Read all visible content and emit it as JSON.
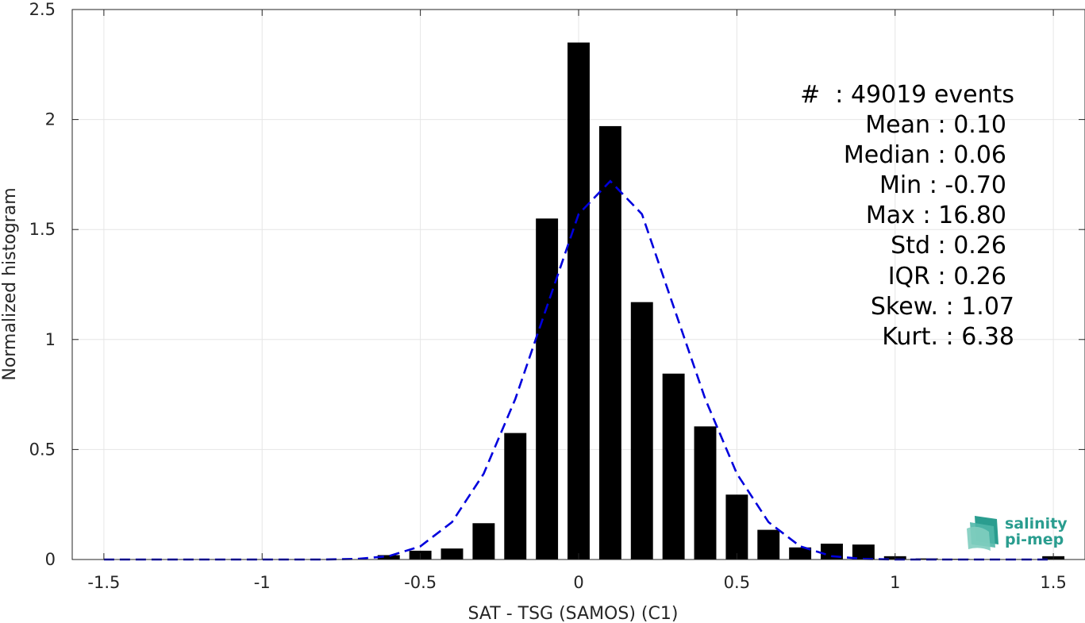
{
  "chart_data": {
    "type": "bar",
    "xlabel": "SAT - TSG (SAMOS) (C1)",
    "ylabel": "Normalized histogram",
    "xlim": [
      -1.6,
      1.6
    ],
    "ylim": [
      0,
      2.5
    ],
    "xticks": [
      -1.5,
      -1,
      -0.5,
      0,
      0.5,
      1,
      1.5
    ],
    "xtick_labels": [
      "-1.5",
      "-1",
      "-0.5",
      "0",
      "0.5",
      "1",
      "1.5"
    ],
    "yticks": [
      0,
      0.5,
      1,
      1.5,
      2,
      2.5
    ],
    "ytick_labels": [
      "0",
      "0.5",
      "1",
      "1.5",
      "2",
      "2.5"
    ],
    "grid": true,
    "bar_color": "#000000",
    "bar_width": 0.07,
    "bars": [
      {
        "x": -0.6,
        "y": 0.02
      },
      {
        "x": -0.5,
        "y": 0.04
      },
      {
        "x": -0.4,
        "y": 0.05
      },
      {
        "x": -0.3,
        "y": 0.165
      },
      {
        "x": -0.2,
        "y": 0.575
      },
      {
        "x": -0.1,
        "y": 1.55
      },
      {
        "x": 0.0,
        "y": 2.35
      },
      {
        "x": 0.1,
        "y": 1.97
      },
      {
        "x": 0.2,
        "y": 1.17
      },
      {
        "x": 0.3,
        "y": 0.845
      },
      {
        "x": 0.4,
        "y": 0.605
      },
      {
        "x": 0.5,
        "y": 0.295
      },
      {
        "x": 0.6,
        "y": 0.135
      },
      {
        "x": 0.7,
        "y": 0.055
      },
      {
        "x": 0.8,
        "y": 0.072
      },
      {
        "x": 0.9,
        "y": 0.068
      },
      {
        "x": 1.0,
        "y": 0.015
      },
      {
        "x": 1.1,
        "y": 0.005
      },
      {
        "x": 1.2,
        "y": 0.003
      },
      {
        "x": 1.3,
        "y": 0.002
      },
      {
        "x": 1.4,
        "y": 0.002
      },
      {
        "x": 1.5,
        "y": 0.015
      }
    ],
    "fit_line": {
      "color": "#0000dd",
      "style": "dashed",
      "points": [
        {
          "x": -1.5,
          "y": 0.0
        },
        {
          "x": -1.4,
          "y": 0.0
        },
        {
          "x": -1.3,
          "y": 0.0
        },
        {
          "x": -1.2,
          "y": 0.0
        },
        {
          "x": -1.1,
          "y": 0.0
        },
        {
          "x": -1.0,
          "y": 0.0
        },
        {
          "x": -0.9,
          "y": 0.0
        },
        {
          "x": -0.8,
          "y": 0.0
        },
        {
          "x": -0.7,
          "y": 0.003
        },
        {
          "x": -0.6,
          "y": 0.015
        },
        {
          "x": -0.5,
          "y": 0.06
        },
        {
          "x": -0.4,
          "y": 0.17
        },
        {
          "x": -0.3,
          "y": 0.39
        },
        {
          "x": -0.2,
          "y": 0.73
        },
        {
          "x": -0.1,
          "y": 1.15
        },
        {
          "x": 0.0,
          "y": 1.57
        },
        {
          "x": 0.1,
          "y": 1.72
        },
        {
          "x": 0.2,
          "y": 1.57
        },
        {
          "x": 0.3,
          "y": 1.15
        },
        {
          "x": 0.4,
          "y": 0.73
        },
        {
          "x": 0.5,
          "y": 0.39
        },
        {
          "x": 0.6,
          "y": 0.17
        },
        {
          "x": 0.7,
          "y": 0.06
        },
        {
          "x": 0.8,
          "y": 0.015
        },
        {
          "x": 0.9,
          "y": 0.003
        },
        {
          "x": 1.0,
          "y": 0.0
        },
        {
          "x": 1.1,
          "y": 0.0
        },
        {
          "x": 1.2,
          "y": 0.0
        },
        {
          "x": 1.3,
          "y": 0.0
        },
        {
          "x": 1.4,
          "y": 0.0
        },
        {
          "x": 1.5,
          "y": 0.0
        }
      ]
    },
    "annotations": {
      "count": "#  : 49019 events",
      "mean": "Mean : 0.10",
      "median": "Median : 0.06",
      "min": "Min : -0.70",
      "max": "Max : 16.80",
      "std": "Std : 0.26",
      "iqr": "IQR : 0.26",
      "skew": "Skew. : 1.07",
      "kurt": "Kurt. : 6.38"
    }
  },
  "logo": {
    "line1": "salinity",
    "line2": "pi-mep",
    "color": "#2a9d8f"
  }
}
